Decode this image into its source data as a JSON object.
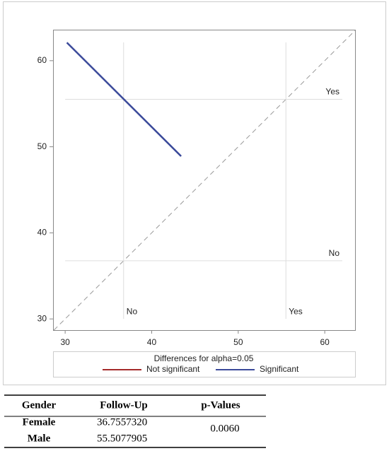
{
  "chart_data": {
    "type": "line",
    "xlim": [
      28.6,
      63.5
    ],
    "ylim": [
      28.7,
      63.6
    ],
    "xticks": [
      30,
      40,
      50,
      60
    ],
    "yticks": [
      30,
      40,
      50,
      60
    ],
    "diagonal": true,
    "reference_lines": [
      {
        "value": 36.755732,
        "label": "No"
      },
      {
        "value": 55.5077905,
        "label": "Yes"
      }
    ],
    "legend_title": "Differences for alpha=0.05",
    "series": [
      {
        "name": "Not significant",
        "color": "#a52a2a",
        "x": [],
        "values": []
      },
      {
        "name": "Significant",
        "color": "#3b4a9a",
        "x": [
          30.2,
          43.4
        ],
        "values": [
          62.1,
          48.9
        ]
      }
    ]
  },
  "table": {
    "header": [
      "Gender",
      "Follow-Up",
      "p-Values"
    ],
    "rows": [
      [
        "Female",
        "36.7557320",
        "0.0060"
      ],
      [
        "Male",
        "55.5077905"
      ]
    ]
  }
}
